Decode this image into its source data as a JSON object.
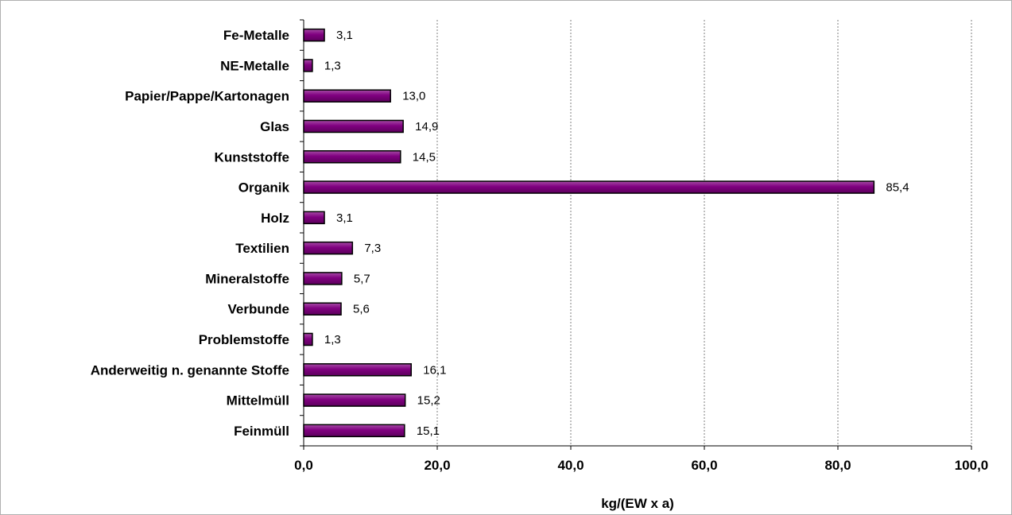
{
  "chart_data": {
    "type": "bar",
    "orientation": "horizontal",
    "categories": [
      "Fe-Metalle",
      "NE-Metalle",
      "Papier/Pappe/Kartonagen",
      "Glas",
      "Kunststoffe",
      "Organik",
      "Holz",
      "Textilien",
      "Mineralstoffe",
      "Verbunde",
      "Problemstoffe",
      "Anderweitig n. genannte Stoffe",
      "Mittelmüll",
      "Feinmüll"
    ],
    "values": [
      3.1,
      1.3,
      13.0,
      14.9,
      14.5,
      85.4,
      3.1,
      7.3,
      5.7,
      5.6,
      1.3,
      16.1,
      15.2,
      15.1
    ],
    "data_labels": [
      "3,1",
      "1,3",
      "13,0",
      "14,9",
      "14,5",
      "85,4",
      "3,1",
      "7,3",
      "5,7",
      "5,6",
      "1,3",
      "16,1",
      "15,2",
      "15,1"
    ],
    "xlabel": "kg/(EW x a)",
    "ylabel": "",
    "title": "",
    "xlim": [
      0,
      100
    ],
    "xticks": [
      0,
      20,
      40,
      60,
      80,
      100
    ],
    "xtick_labels": [
      "0,0",
      "20,0",
      "40,0",
      "60,0",
      "80,0",
      "100,0"
    ],
    "grid": "vertical dashed",
    "legend": "none",
    "colors": {
      "bar_fill": "#800080",
      "bar_highlight": "#a64ca6",
      "bar_edge": "#000000",
      "gridline": "#7f7f7f",
      "frame_border": "#b0b0b0"
    }
  }
}
